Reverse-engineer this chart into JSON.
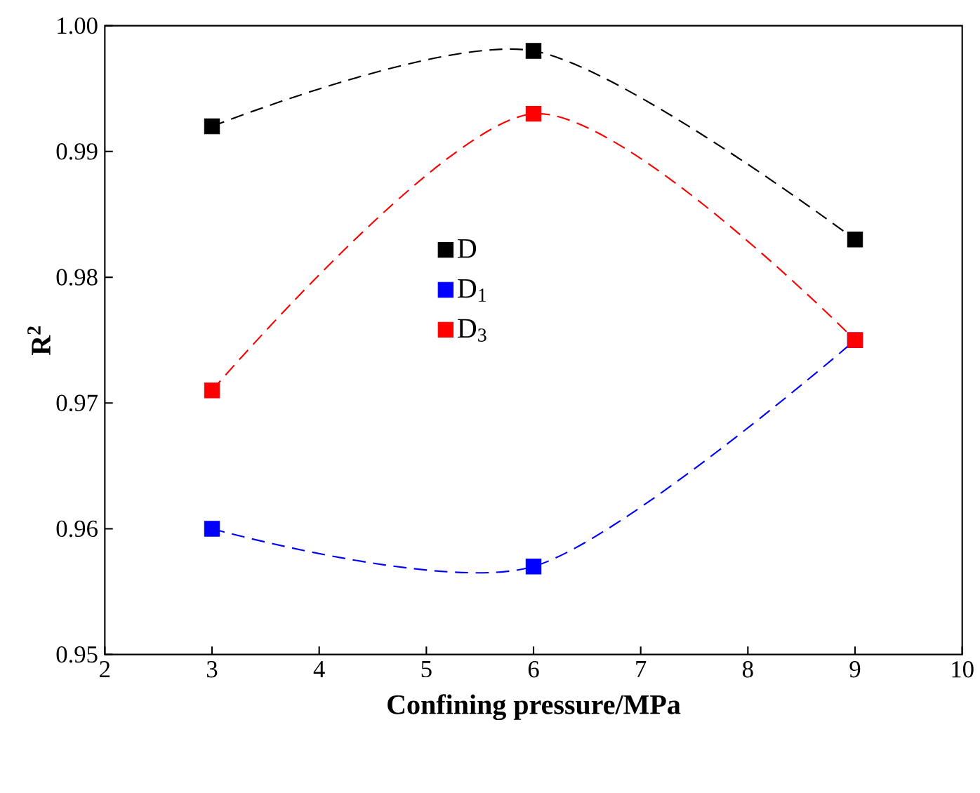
{
  "chart_data": {
    "type": "line",
    "xlabel": "Confining pressure/MPa",
    "ylabel": "R$^{2}$",
    "x": [
      3,
      6,
      9
    ],
    "series": [
      {
        "name": "D",
        "color": "#000000",
        "values": [
          0.992,
          0.998,
          0.983
        ]
      },
      {
        "name": "D$_{1}$",
        "color": "#0000ff",
        "values": [
          0.96,
          0.957,
          0.975
        ]
      },
      {
        "name": "D$_{3}$",
        "color": "#ff0000",
        "values": [
          0.971,
          0.993,
          0.975
        ]
      }
    ],
    "xlim": [
      2,
      10
    ],
    "ylim": [
      0.95,
      1.0
    ],
    "xticks": [
      2,
      3,
      4,
      5,
      6,
      7,
      8,
      9,
      10
    ],
    "yticks": [
      0.95,
      0.96,
      0.97,
      0.98,
      0.99,
      {
        "value": 1.0,
        "label": "1.00"
      }
    ],
    "marker": "square",
    "line_style": "dashed",
    "legend": "center",
    "grid": false
  }
}
